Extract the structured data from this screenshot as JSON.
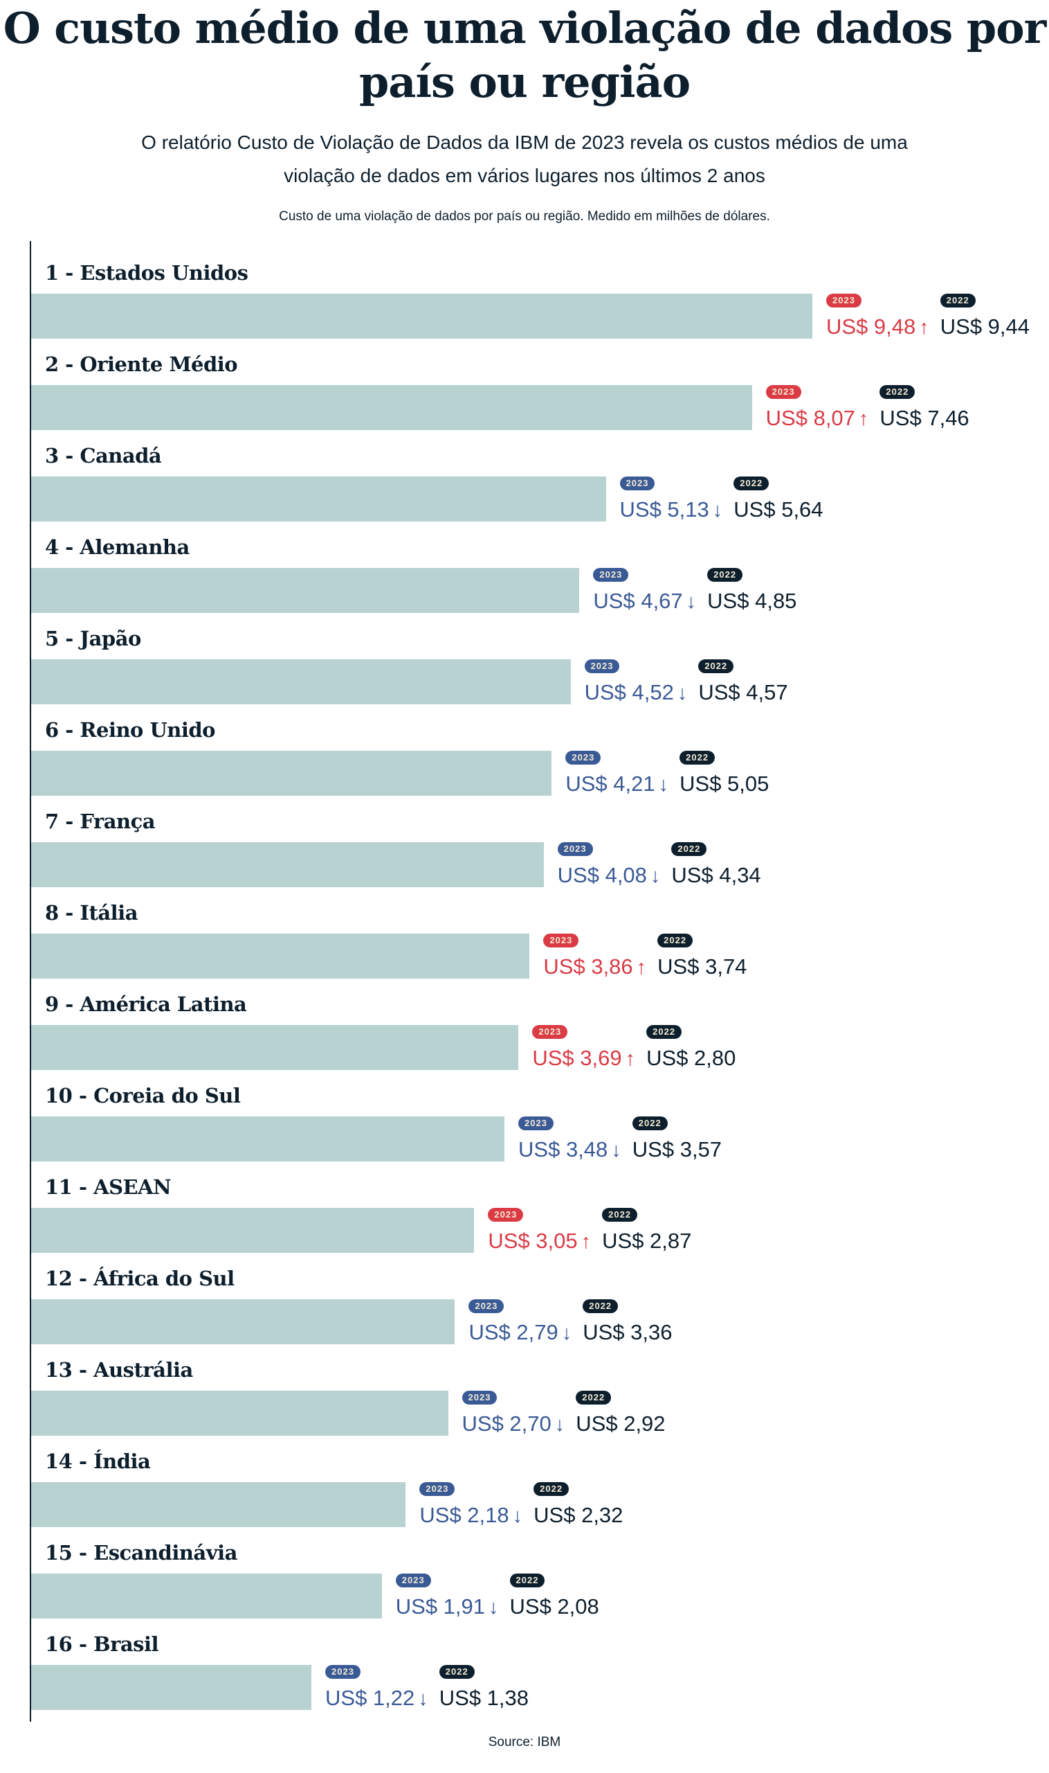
{
  "colors": {
    "up": "#da3b45",
    "down": "#3a5a96",
    "dark": "#0d1f2d",
    "bar": "#b8d2d2"
  },
  "header": {
    "title": "O custo médio de uma violação de dados por país ou região",
    "subtitle": "O relatório Custo de Violação de Dados da IBM de 2023 revela os custos médios de uma violação de dados em vários lugares nos últimos 2 anos",
    "caption": "Custo de uma violação de dados por país ou região. Medido em milhões de dólares."
  },
  "source": "Source: IBM",
  "chart_data": {
    "type": "bar",
    "orientation": "horizontal",
    "badge_2023": "2023",
    "badge_2022": "2022",
    "currency_prefix": "US$",
    "categories": [
      "1 - Estados Unidos",
      "2 - Oriente Médio",
      "3 - Canadá",
      "4 - Alemanha",
      "5 - Japão",
      "6 - Reino Unido",
      "7 - França",
      "8 - Itália",
      "9 - América Latina",
      "10 - Coreia do Sul",
      "11 - ASEAN",
      "12 - África do Sul",
      "13 - Austrália",
      "14 - Índia",
      "15 - Escandinávia",
      "16 - Brasil"
    ],
    "series": [
      {
        "name": "2023",
        "values": [
          9.48,
          8.07,
          5.13,
          4.67,
          4.52,
          4.21,
          4.08,
          3.86,
          3.69,
          3.48,
          3.05,
          2.79,
          2.7,
          2.18,
          1.91,
          1.22
        ],
        "labels": [
          "US$ 9,48",
          "US$ 8,07",
          "US$ 5,13",
          "US$ 4,67",
          "US$ 4,52",
          "US$ 4,21",
          "US$ 4,08",
          "US$ 3,86",
          "US$ 3,69",
          "US$ 3,48",
          "US$ 3,05",
          "US$ 2,79",
          "US$ 2,70",
          "US$ 2,18",
          "US$ 1,91",
          "US$ 1,22"
        ]
      },
      {
        "name": "2022",
        "values": [
          9.44,
          7.46,
          5.64,
          4.85,
          4.57,
          5.05,
          4.34,
          3.74,
          2.8,
          3.57,
          2.87,
          3.36,
          2.92,
          2.32,
          2.08,
          1.38
        ],
        "labels": [
          "US$ 9,44",
          "US$ 7,46",
          "US$ 5,64",
          "US$ 4,85",
          "US$ 4,57",
          "US$ 5,05",
          "US$ 4,34",
          "US$ 3,74",
          "US$ 2,80",
          "US$ 3,57",
          "US$ 2,87",
          "US$ 3,36",
          "US$ 2,92",
          "US$ 2,32",
          "US$ 2,08",
          "US$ 1,38"
        ]
      }
    ],
    "trend_arrows": {
      "up": "↑",
      "down": "↓"
    }
  }
}
